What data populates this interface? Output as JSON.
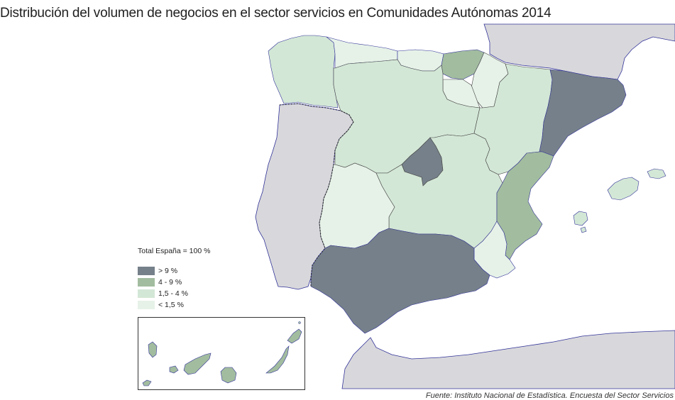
{
  "title": "Distribución del volumen de negocios en el sector servicios en Comunidades Autónomas 2014",
  "legend": {
    "title": "Total España = 100 %",
    "items": [
      {
        "label": "> 9 %",
        "color": "#75808a"
      },
      {
        "label": "4 - 9 %",
        "color": "#a2bc9f"
      },
      {
        "label": "1,5 - 4 %",
        "color": "#d3e7d6"
      },
      {
        "label": "< 1,5 %",
        "color": "#e6f2e8"
      }
    ]
  },
  "colors": {
    "sea": "#ffffff",
    "neighbor_land": "#d8d8dc",
    "coast": "#333399",
    "border": "#444444"
  },
  "regions": [
    {
      "name": "Galicia",
      "class": "1,5 - 4 %"
    },
    {
      "name": "Asturias",
      "class": "< 1,5 %"
    },
    {
      "name": "Cantabria",
      "class": "< 1,5 %"
    },
    {
      "name": "País Vasco",
      "class": "4 - 9 %"
    },
    {
      "name": "Navarra",
      "class": "< 1,5 %"
    },
    {
      "name": "La Rioja",
      "class": "< 1,5 %"
    },
    {
      "name": "Castilla y León",
      "class": "1,5 - 4 %"
    },
    {
      "name": "Aragón",
      "class": "1,5 - 4 %"
    },
    {
      "name": "Cataluña",
      "class": "> 9 %"
    },
    {
      "name": "Madrid",
      "class": "> 9 %"
    },
    {
      "name": "Castilla-La Mancha",
      "class": "1,5 - 4 %"
    },
    {
      "name": "Extremadura",
      "class": "< 1,5 %"
    },
    {
      "name": "Comunitat Valenciana",
      "class": "4 - 9 %"
    },
    {
      "name": "Murcia",
      "class": "< 1,5 %"
    },
    {
      "name": "Andalucía",
      "class": "> 9 %"
    },
    {
      "name": "Illes Balears",
      "class": "1,5 - 4 %"
    },
    {
      "name": "Canarias",
      "class": "4 - 9 %"
    }
  ],
  "source": "Fuente: Instituto Nacional de Estadística. Encuesta del Sector Servicios"
}
